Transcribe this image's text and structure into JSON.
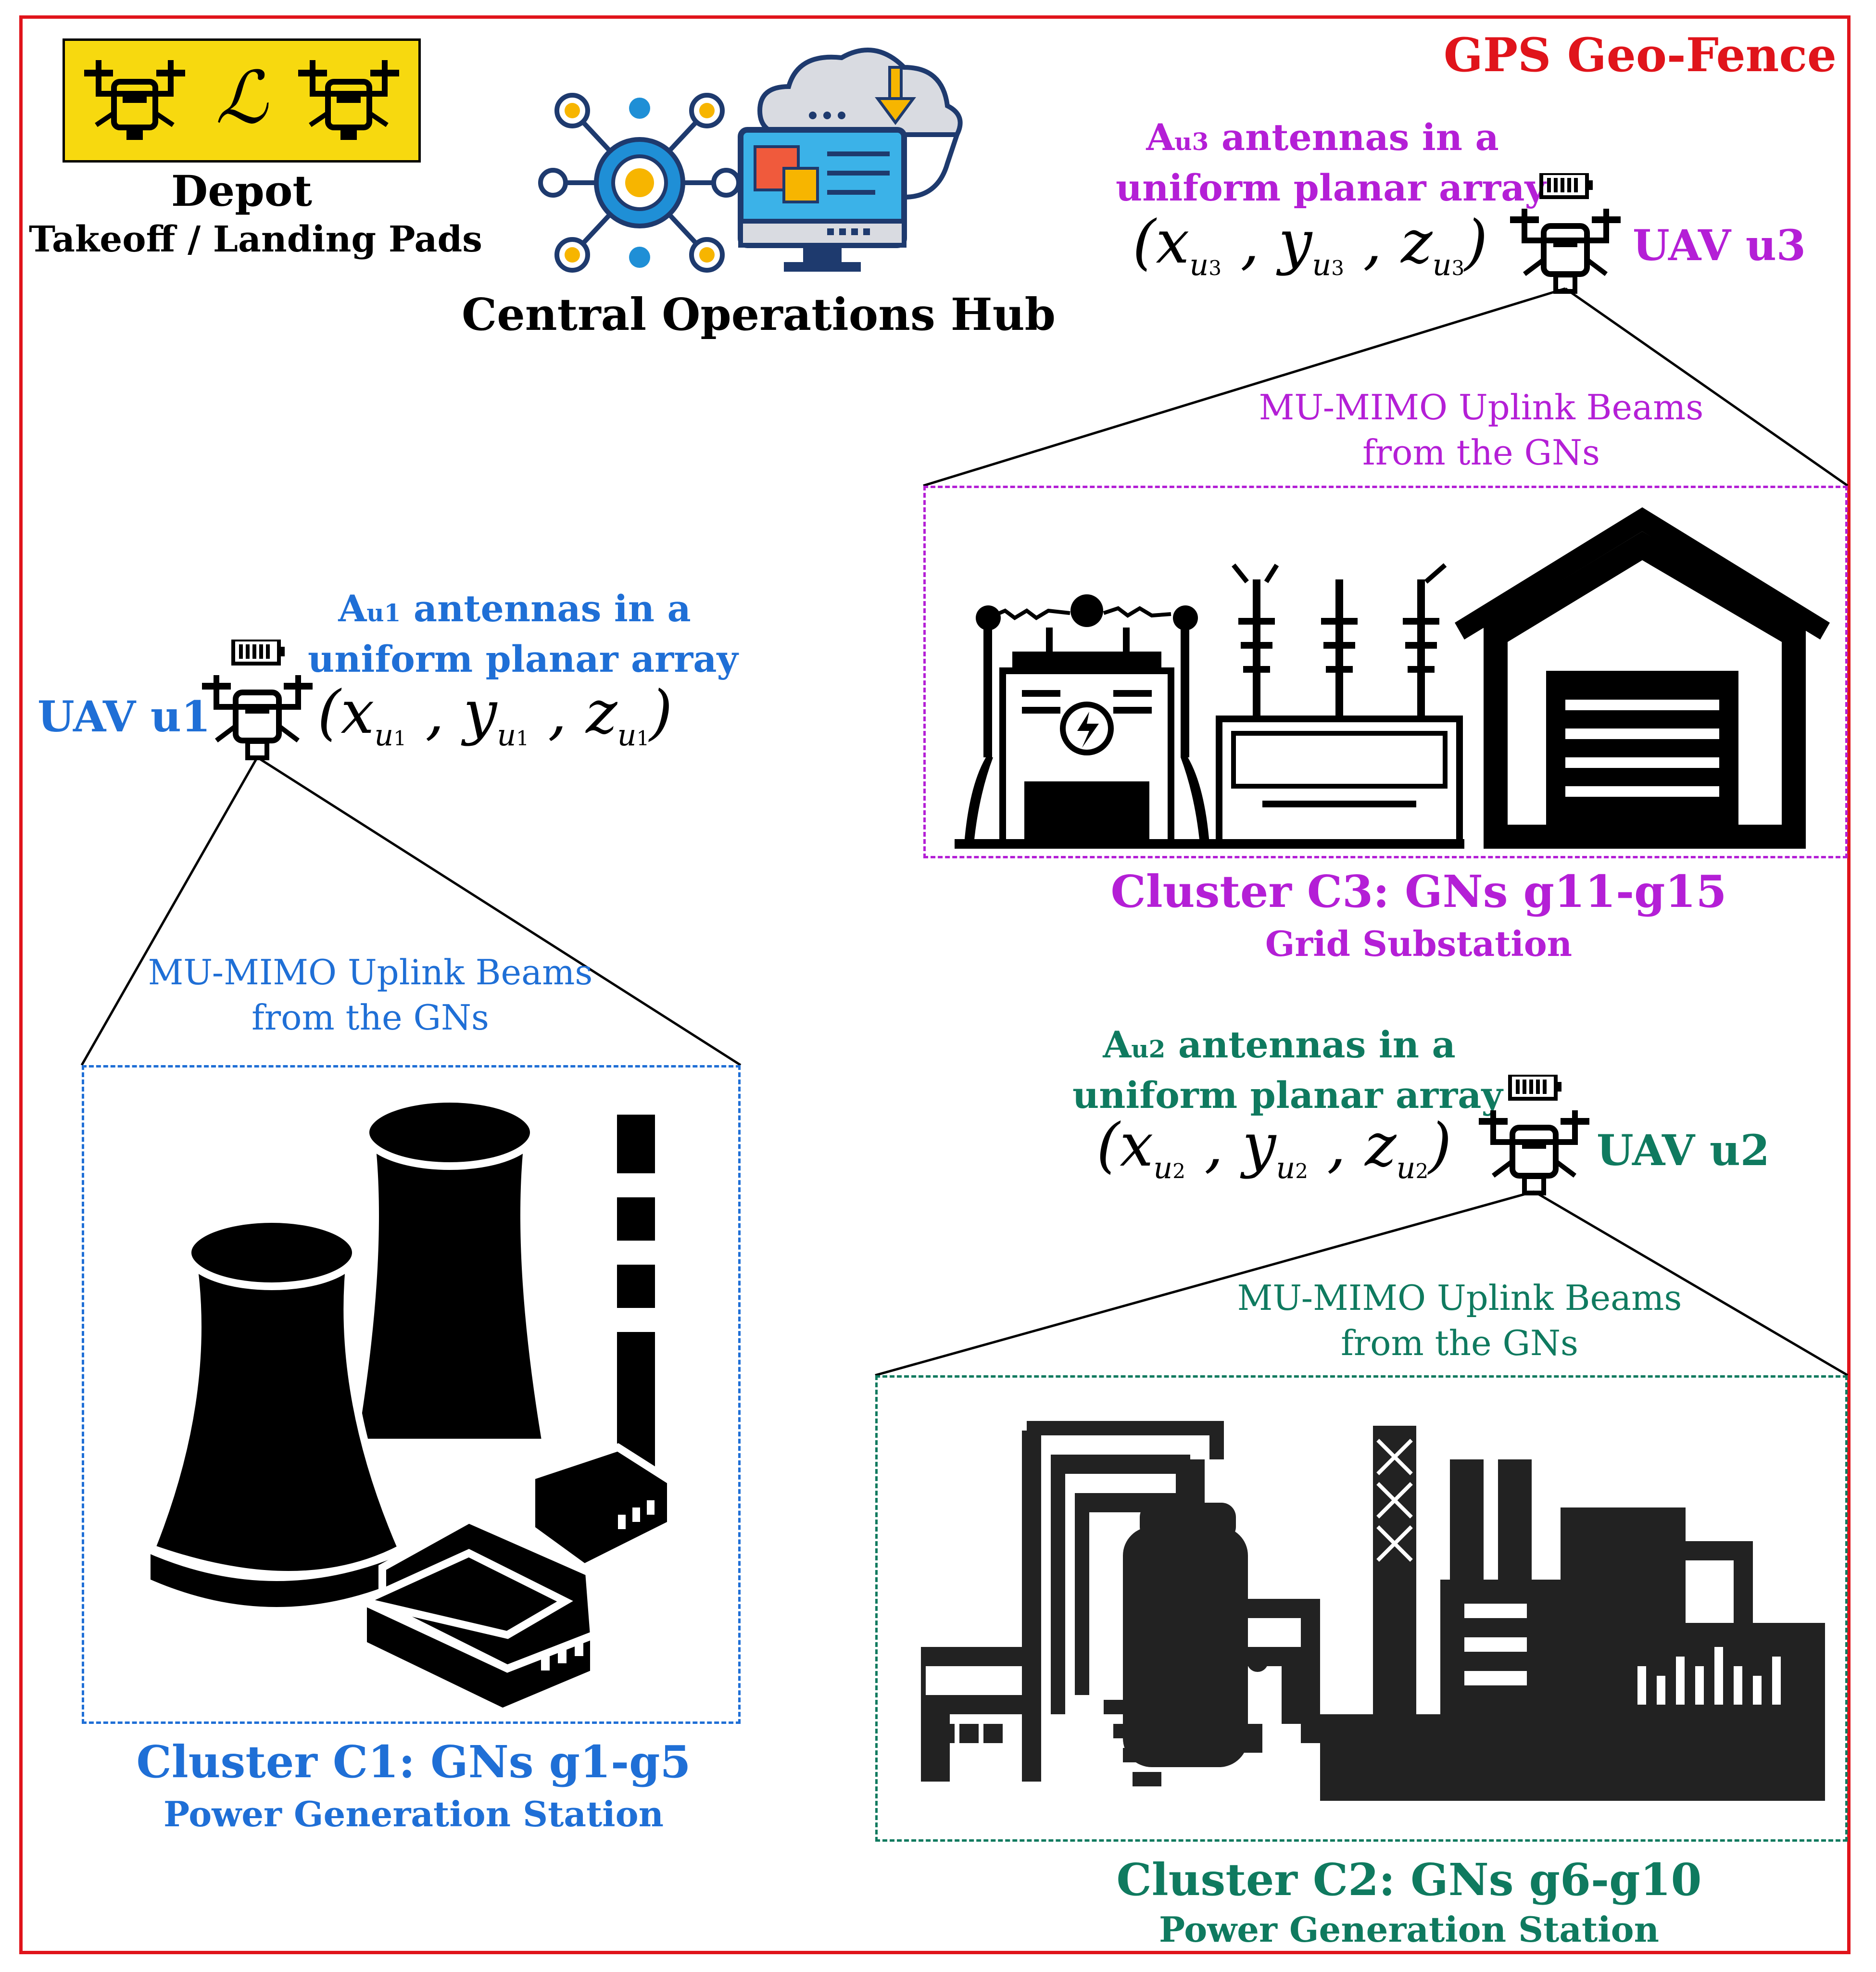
{
  "geo_fence": {
    "label": "GPS Geo-Fence",
    "color": "#e0141b"
  },
  "depot": {
    "badge_symbol": "ℒ",
    "title": "Depot",
    "subtitle": "Takeoff / Landing Pads",
    "badge_color": "#f7d90f",
    "icons": [
      "drone-icon",
      "drone-icon"
    ]
  },
  "hub": {
    "label": "Central Operations Hub",
    "icons": [
      "network-hub-icon",
      "cloud-computer-icon"
    ]
  },
  "colors": {
    "c1": "#1f6fd6",
    "c2": "#0f7a5f",
    "c3": "#b41fd6"
  },
  "uavs": {
    "u1": {
      "label_prefix": "UAV ",
      "label_id": "u1",
      "ant_prefix": "A",
      "ant_sub": "u1",
      "ant_rest": " antennas in a",
      "ant_line2": "uniform planar array",
      "coord_x": "x",
      "coord_y": "y",
      "coord_z": "z",
      "coord_sub": "u",
      "coord_idx": "1"
    },
    "u2": {
      "label_prefix": "UAV ",
      "label_id": "u2",
      "ant_prefix": "A",
      "ant_sub": "u2",
      "ant_rest": " antennas in a",
      "ant_line2": "uniform planar array",
      "coord_x": "x",
      "coord_y": "y",
      "coord_z": "z",
      "coord_sub": "u",
      "coord_idx": "2"
    },
    "u3": {
      "label_prefix": "UAV ",
      "label_id": "u3",
      "ant_prefix": "A",
      "ant_sub": "u3",
      "ant_rest": " antennas in a",
      "ant_line2": "uniform planar array",
      "coord_x": "x",
      "coord_y": "y",
      "coord_z": "z",
      "coord_sub": "u",
      "coord_idx": "3"
    }
  },
  "beams": {
    "line1": "MU-MIMO Uplink Beams",
    "line2": "from the GNs"
  },
  "clusters": {
    "c1": {
      "name": "Cluster C1: ",
      "gns": "GNs g1-g5",
      "site": "Power Generation Station",
      "icon": "cooling-towers-icon"
    },
    "c2": {
      "name": "Cluster C2: ",
      "gns": "GNs g6-g10",
      "site": "Power Generation Station",
      "icon": "industrial-plant-icon"
    },
    "c3": {
      "name": "Cluster C3: ",
      "gns": "GNs g11-g15",
      "site": "Grid Substation",
      "icons": [
        "substation-icon",
        "transformer-icon",
        "warehouse-icon"
      ]
    }
  }
}
